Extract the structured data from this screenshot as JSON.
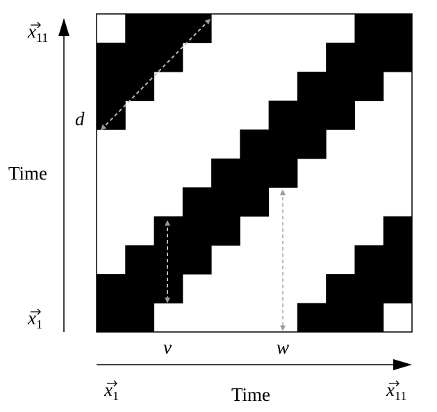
{
  "axes": {
    "y_top": {
      "symbol": "x",
      "subscript": "11"
    },
    "y_bottom": {
      "symbol": "x",
      "subscript": "1"
    },
    "y_title": "Time",
    "x_left": {
      "symbol": "x",
      "subscript": "1"
    },
    "x_right": {
      "symbol": "x",
      "subscript": "11"
    },
    "x_title": "Time"
  },
  "annotations": {
    "d": "d",
    "v": "v",
    "w": "w"
  }
}
